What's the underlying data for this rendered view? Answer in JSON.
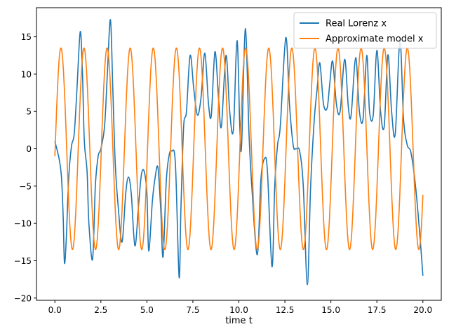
{
  "chart_data": {
    "type": "line",
    "title": "",
    "xlabel": "time t",
    "ylabel": "",
    "xlim": [
      -1.0,
      21.0
    ],
    "ylim": [
      -20.3,
      18.9
    ],
    "xticks": [
      0.0,
      2.5,
      5.0,
      7.5,
      10.0,
      12.5,
      15.0,
      17.5,
      20.0
    ],
    "xtick_labels": [
      "0.0",
      "2.5",
      "5.0",
      "7.5",
      "10.0",
      "12.5",
      "15.0",
      "17.5",
      "20.0"
    ],
    "yticks": [
      -20,
      -15,
      -10,
      -5,
      0,
      5,
      10,
      15
    ],
    "ytick_labels": [
      "−20",
      "−15",
      "−10",
      "−5",
      "0",
      "5",
      "10",
      "15"
    ],
    "grid": false,
    "legend": "top-right",
    "series": [
      {
        "name": "Real Lorenz x",
        "color": "#1f77b4",
        "points": [
          [
            0.0,
            1.0
          ],
          [
            0.2,
            -1.0
          ],
          [
            0.35,
            -3.5
          ],
          [
            0.45,
            -9.0
          ],
          [
            0.52,
            -15.3
          ],
          [
            0.62,
            -12.0
          ],
          [
            0.75,
            -4.0
          ],
          [
            0.9,
            0.3
          ],
          [
            1.05,
            2.0
          ],
          [
            1.2,
            8.0
          ],
          [
            1.38,
            15.7
          ],
          [
            1.5,
            10.0
          ],
          [
            1.6,
            1.0
          ],
          [
            1.75,
            -3.0
          ],
          [
            1.85,
            -10.0
          ],
          [
            2.05,
            -14.8
          ],
          [
            2.2,
            -5.0
          ],
          [
            2.35,
            -1.0
          ],
          [
            2.5,
            0.0
          ],
          [
            2.7,
            3.0
          ],
          [
            2.85,
            10.0
          ],
          [
            3.02,
            17.3
          ],
          [
            3.15,
            8.0
          ],
          [
            3.28,
            -2.0
          ],
          [
            3.45,
            -8.0
          ],
          [
            3.65,
            -12.5
          ],
          [
            3.85,
            -6.0
          ],
          [
            4.0,
            -3.8
          ],
          [
            4.15,
            -6.0
          ],
          [
            4.35,
            -13.0
          ],
          [
            4.55,
            -7.5
          ],
          [
            4.7,
            -3.5
          ],
          [
            4.85,
            -3.0
          ],
          [
            5.0,
            -6.0
          ],
          [
            5.1,
            -13.7
          ],
          [
            5.3,
            -7.0
          ],
          [
            5.45,
            -3.8
          ],
          [
            5.6,
            -2.5
          ],
          [
            5.75,
            -8.0
          ],
          [
            5.88,
            -14.5
          ],
          [
            6.05,
            -4.5
          ],
          [
            6.2,
            -1.0
          ],
          [
            6.35,
            -0.3
          ],
          [
            6.55,
            -2.0
          ],
          [
            6.75,
            -17.2
          ],
          [
            6.85,
            -8.0
          ],
          [
            7.0,
            3.0
          ],
          [
            7.15,
            5.0
          ],
          [
            7.35,
            12.5
          ],
          [
            7.55,
            8.0
          ],
          [
            7.75,
            4.5
          ],
          [
            7.95,
            7.0
          ],
          [
            8.15,
            12.8
          ],
          [
            8.35,
            6.0
          ],
          [
            8.5,
            4.5
          ],
          [
            8.7,
            13.0
          ],
          [
            8.9,
            6.5
          ],
          [
            9.05,
            3.0
          ],
          [
            9.3,
            12.5
          ],
          [
            9.5,
            5.0
          ],
          [
            9.7,
            2.5
          ],
          [
            9.9,
            14.5
          ],
          [
            10.05,
            3.0
          ],
          [
            10.15,
            0.5
          ],
          [
            10.35,
            16.1
          ],
          [
            10.55,
            2.0
          ],
          [
            10.7,
            -5.0
          ],
          [
            11.0,
            -14.2
          ],
          [
            11.2,
            -4.0
          ],
          [
            11.4,
            -1.3
          ],
          [
            11.55,
            -3.0
          ],
          [
            11.8,
            -15.8
          ],
          [
            11.95,
            -5.0
          ],
          [
            12.1,
            0.5
          ],
          [
            12.25,
            3.0
          ],
          [
            12.55,
            14.9
          ],
          [
            12.75,
            6.0
          ],
          [
            12.95,
            0.5
          ],
          [
            13.1,
            0.0
          ],
          [
            13.3,
            -0.3
          ],
          [
            13.5,
            -5.0
          ],
          [
            13.72,
            -18.2
          ],
          [
            13.9,
            -5.0
          ],
          [
            14.1,
            4.0
          ],
          [
            14.25,
            8.0
          ],
          [
            14.4,
            11.5
          ],
          [
            14.6,
            6.0
          ],
          [
            14.8,
            5.5
          ],
          [
            14.95,
            9.0
          ],
          [
            15.1,
            11.7
          ],
          [
            15.3,
            6.0
          ],
          [
            15.5,
            5.0
          ],
          [
            15.75,
            12.0
          ],
          [
            15.95,
            5.5
          ],
          [
            16.1,
            4.5
          ],
          [
            16.35,
            12.2
          ],
          [
            16.55,
            5.0
          ],
          [
            16.75,
            4.0
          ],
          [
            16.95,
            12.5
          ],
          [
            17.1,
            5.0
          ],
          [
            17.3,
            4.5
          ],
          [
            17.5,
            13.2
          ],
          [
            17.7,
            5.0
          ],
          [
            17.9,
            3.0
          ],
          [
            18.1,
            12.6
          ],
          [
            18.3,
            5.0
          ],
          [
            18.5,
            2.0
          ],
          [
            18.75,
            14.5
          ],
          [
            18.95,
            4.0
          ],
          [
            19.15,
            0.5
          ],
          [
            19.35,
            -0.5
          ],
          [
            19.6,
            -5.0
          ],
          [
            19.85,
            -12.0
          ],
          [
            20.0,
            -17.0
          ]
        ]
      },
      {
        "name": "Approximate model x",
        "color": "#ff7f0e",
        "sinusoid": {
          "amplitude": 13.5,
          "period": 1.255,
          "phase": -0.0741,
          "t_start": 0.0,
          "t_end": 20.0
        }
      }
    ]
  }
}
